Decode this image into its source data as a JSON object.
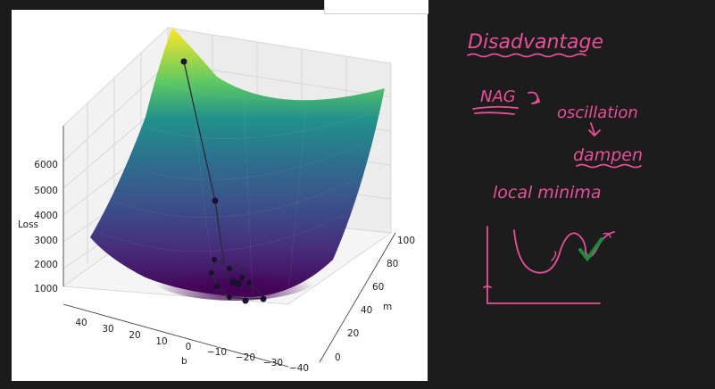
{
  "plot": {
    "zlabel": "Loss",
    "xlabel": "b",
    "ylabel": "m",
    "z_ticks": [
      "6000",
      "5000",
      "4000",
      "3000",
      "2000",
      "1000"
    ],
    "b_ticks": [
      "40",
      "30",
      "20",
      "10",
      "0",
      "−10",
      "−20",
      "−30",
      "−40"
    ],
    "m_ticks": [
      "100",
      "80",
      "60",
      "40",
      "20",
      "0"
    ],
    "surface_colormap": [
      "#440154",
      "#3b528b",
      "#21918c",
      "#5ec962",
      "#fde725"
    ]
  },
  "notes": {
    "title": "Disadvantage",
    "nag": "NAG",
    "oscillation": "oscillation",
    "dampen": "dampen",
    "local_minima": "local minima",
    "ink_color": "#e8509a",
    "check_color": "#1f8a3a"
  }
}
